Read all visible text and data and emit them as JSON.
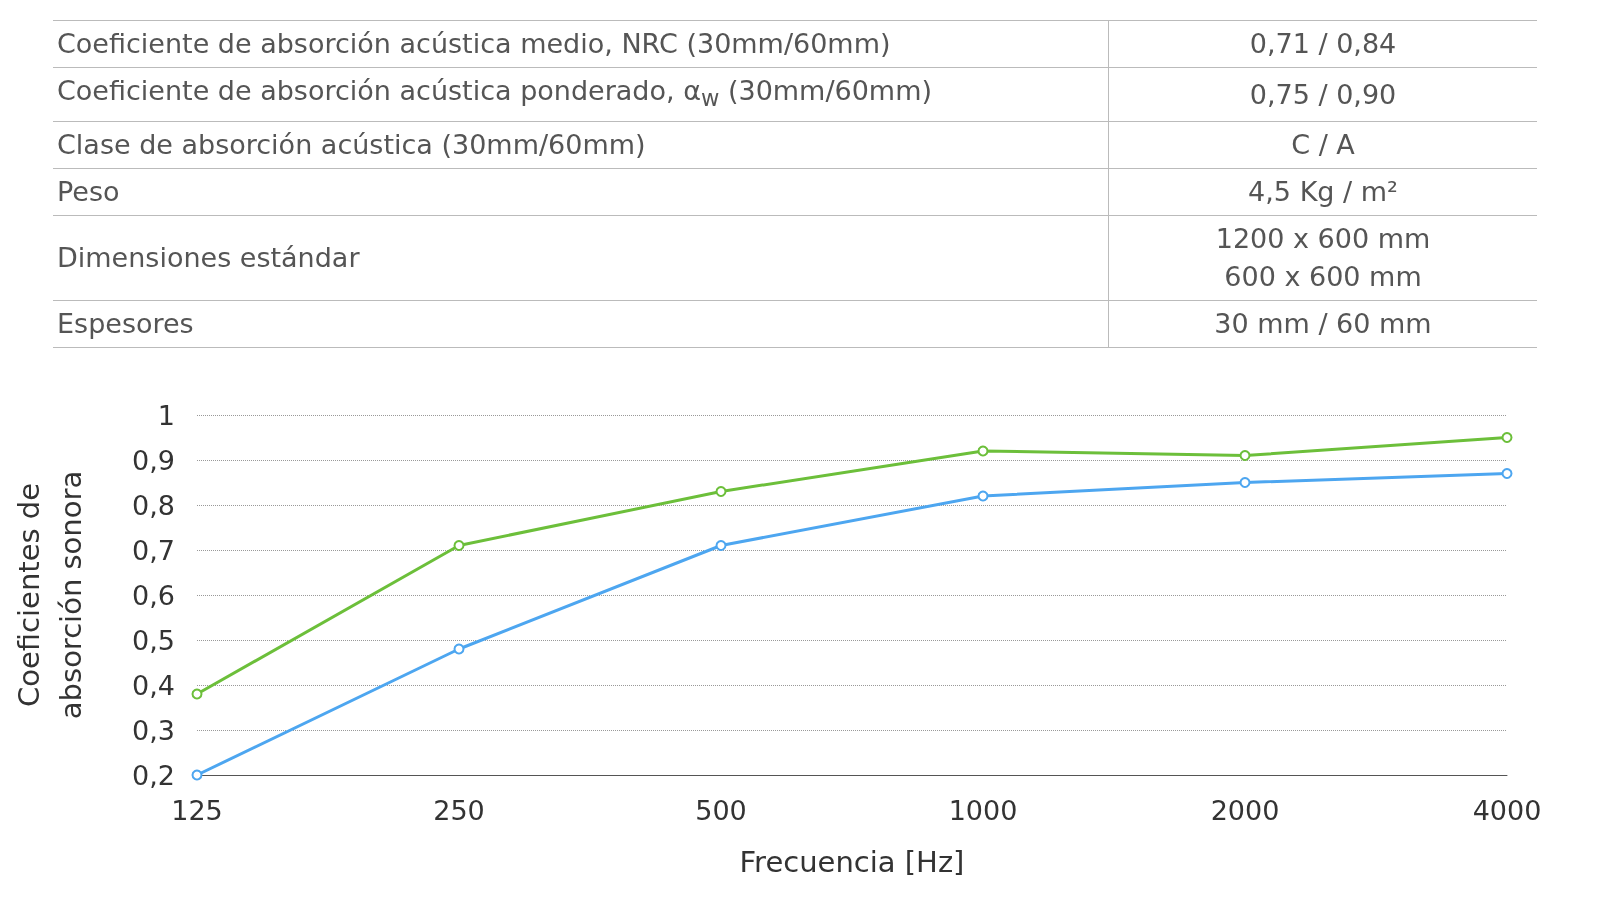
{
  "chart_data": {
    "type": "line",
    "xlabel": "Frecuencia [Hz]",
    "ylabel": "Coeficientes de\nabsorción sonora",
    "categories": [
      "125",
      "250",
      "500",
      "1000",
      "2000",
      "4000"
    ],
    "series": [
      {
        "color": "#4da6f0",
        "values": [
          0.2,
          0.48,
          0.71,
          0.82,
          0.85,
          0.87
        ]
      },
      {
        "color": "#6cbf3a",
        "values": [
          0.38,
          0.71,
          0.83,
          0.92,
          0.91,
          0.95
        ]
      }
    ],
    "ylim": [
      0.2,
      1
    ],
    "yticks": [
      {
        "value": 0.2,
        "label": "0,2"
      },
      {
        "value": 0.3,
        "label": "0,3"
      },
      {
        "value": 0.4,
        "label": "0,4"
      },
      {
        "value": 0.5,
        "label": "0,5"
      },
      {
        "value": 0.6,
        "label": "0,6"
      },
      {
        "value": 0.7,
        "label": "0,7"
      },
      {
        "value": 0.8,
        "label": "0,8"
      },
      {
        "value": 0.9,
        "label": "0,9"
      },
      1
    ],
    "grid": "y",
    "marker": "circle",
    "line_style": "solid",
    "annotations": [
      "Coeficiente de absorción acústica medio, NRC (30mm/60mm)",
      "0,71 / 0,84",
      "Coeficiente de absorción acústica ponderado, α$_{w}$ (30mm/60mm)",
      "0,75 / 0,90",
      "Clase de absorción acústica (30mm/60mm)",
      "C / A",
      "Peso",
      "4,5 Kg / m²",
      "Dimensiones estándar",
      "1200 x 600 mm\n600 x 600 mm",
      "Espesores",
      "30 mm / 60 mm"
    ]
  }
}
